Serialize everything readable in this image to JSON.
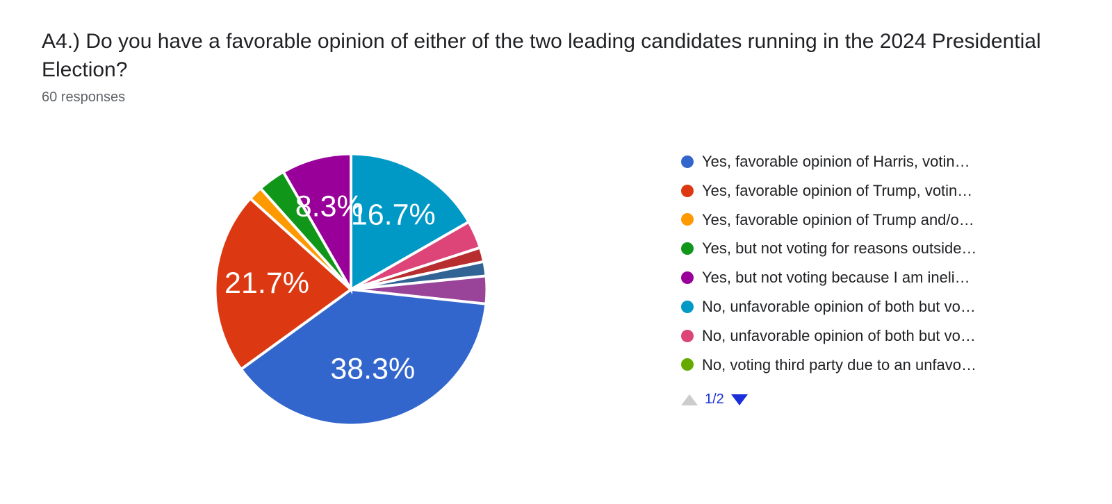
{
  "title": "A4.) Do you have a favorable opinion of either of the two leading candidates running in the 2024 Presidential Election?",
  "subtitle": "60 responses",
  "chart": {
    "type": "pie",
    "background_color": "#ffffff",
    "slice_border_color": "#ffffff",
    "slice_border_width": 2,
    "label_color": "#ffffff",
    "label_fontsize": 22,
    "title_fontsize": 30,
    "subtitle_fontsize": 20,
    "subtitle_color": "#5f6368",
    "legend_fontsize": 22,
    "pager": {
      "page_text": "1/2",
      "prev_enabled": false,
      "next_enabled": true,
      "enabled_color": "#1a2fd8",
      "disabled_color": "#cccccc"
    },
    "slices": [
      {
        "label": "Yes, favorable opinion of Harris, votin…",
        "value": 38.3,
        "color": "#3366cc",
        "show_label": true
      },
      {
        "label": "Yes, favorable opinion of Trump, votin…",
        "value": 21.7,
        "color": "#dc3912",
        "show_label": true
      },
      {
        "label": "Yes, favorable opinion of Trump and/o…",
        "value": 1.7,
        "color": "#ff9900",
        "show_label": false
      },
      {
        "label": "Yes, but not voting for reasons outside…",
        "value": 3.3,
        "color": "#109618",
        "show_label": false
      },
      {
        "label": "Yes, but not voting because I am ineli…",
        "value": 8.3,
        "color": "#990099",
        "show_label": true
      },
      {
        "label": "No, unfavorable opinion of both but vo…",
        "value": 16.7,
        "color": "#0099c6",
        "show_label": true
      },
      {
        "label": "No, unfavorable opinion of both but vo…",
        "value": 3.3,
        "color": "#dd4477",
        "show_label": false
      },
      {
        "label": "No, voting third party due to an unfavo…",
        "value": 0.0,
        "color": "#66aa00",
        "show_label": false
      },
      {
        "label": "__extra_a",
        "value": 1.7,
        "color": "#b82e2e",
        "show_label": false,
        "hide_in_legend": true
      },
      {
        "label": "__extra_b",
        "value": 1.7,
        "color": "#316395",
        "show_label": false,
        "hide_in_legend": true
      },
      {
        "label": "__extra_c",
        "value": 3.3,
        "color": "#994499",
        "show_label": false,
        "hide_in_legend": true
      }
    ]
  }
}
